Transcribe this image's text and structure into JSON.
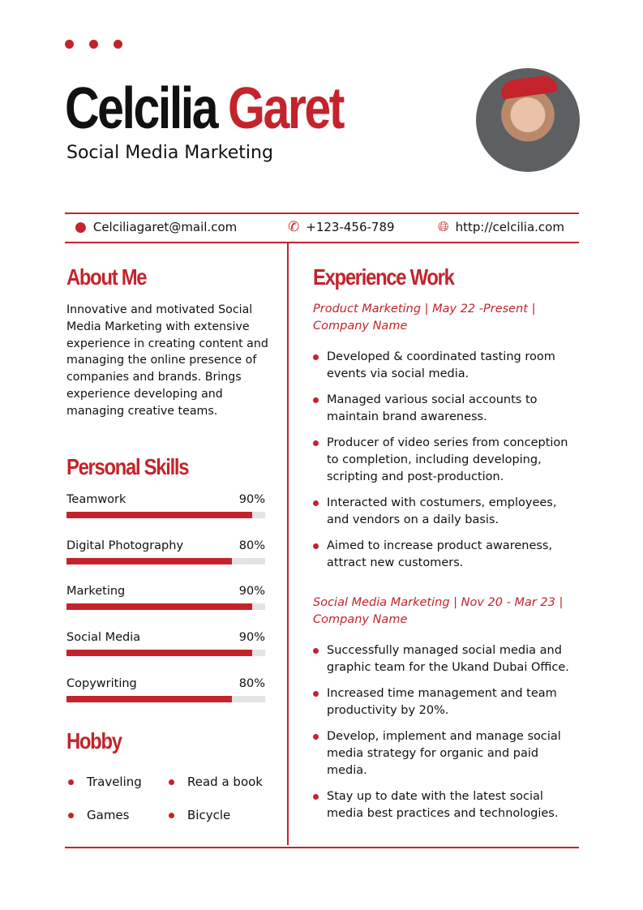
{
  "header": {
    "first_name": "Celcilia",
    "last_name": "Garet",
    "role": "Social Media Marketing"
  },
  "contact": {
    "email": "Celciliagaret@mail.com",
    "phone": "+123-456-789",
    "website": "http://celcilia.com"
  },
  "about": {
    "title": "About Me",
    "text": "Innovative and motivated Social Media Marketing with extensive experience in creating content and managing the online presence of companies and brands. Brings experience developing and managing creative teams."
  },
  "skills": {
    "title": "Personal Skills",
    "items": [
      {
        "label": "Teamwork",
        "value": "90%",
        "percent": 90
      },
      {
        "label": "Digital Photography",
        "value": "80%",
        "percent": 80
      },
      {
        "label": "Marketing",
        "value": "90%",
        "percent": 90
      },
      {
        "label": "Social Media",
        "value": "90%",
        "percent": 90
      },
      {
        "label": "Copywriting",
        "value": "80%",
        "percent": 80
      }
    ]
  },
  "hobby": {
    "title": "Hobby",
    "items": [
      "Traveling",
      "Read a book",
      "Games",
      "Bicycle"
    ]
  },
  "experience": {
    "title": "Experience Work",
    "jobs": [
      {
        "heading": "Product Marketing | May 22 -Present | Company Name",
        "bullets": [
          "Developed & coordinated tasting room events via social media.",
          "Managed various social accounts to maintain brand awareness.",
          "Producer of video series from conception to completion, including developing, scripting and post-production.",
          "Interacted with costumers, employees, and vendors on a daily basis.",
          "Aimed to increase product awareness, attract new customers."
        ]
      },
      {
        "heading": "Social Media Marketing | Nov 20 - Mar 23 | Company Name",
        "bullets": [
          "Successfully managed social media and graphic team for the Ukand Dubai Office.",
          "Increased time management and team productivity by 20%.",
          "Develop, implement and manage social media strategy for organic and paid media.",
          "Stay up to date with the latest social media best practices and technologies."
        ]
      }
    ]
  },
  "colors": {
    "accent": "#c4232b"
  }
}
